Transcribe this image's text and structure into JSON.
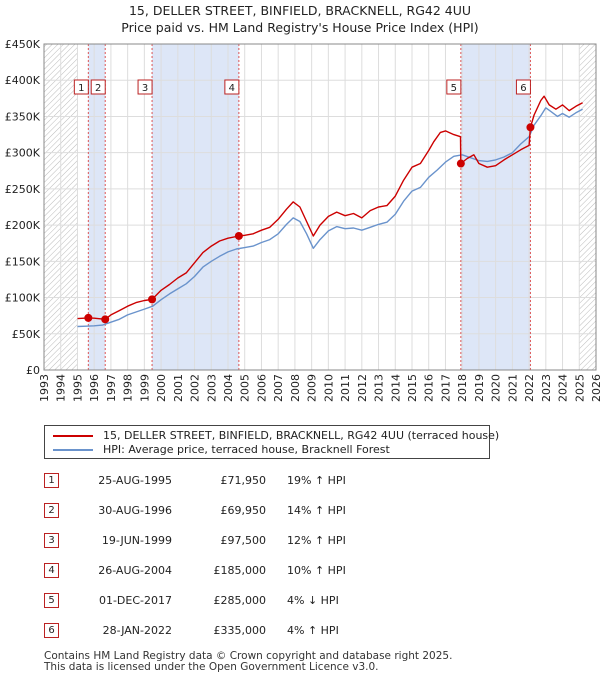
{
  "title": {
    "line1": "15, DELLER STREET, BINFIELD, BRACKNELL, RG42 4UU",
    "line2": "Price paid vs. HM Land Registry's House Price Index (HPI)"
  },
  "colors": {
    "price_line": "#cc0000",
    "hpi_line": "#6a93cc",
    "shade": "#dde6f7",
    "marker": "#cc0000",
    "marker_border": "#bb2222"
  },
  "legend": {
    "price_label": "15, DELLER STREET, BINFIELD, BRACKNELL, RG42 4UU (terraced house)",
    "hpi_label": "HPI: Average price, terraced house, Bracknell Forest"
  },
  "transactions": [
    {
      "num": "1",
      "date": "25-AUG-1995",
      "price": "£71,950",
      "hpi": "19% ↑ HPI"
    },
    {
      "num": "2",
      "date": "30-AUG-1996",
      "price": "£69,950",
      "hpi": "14% ↑ HPI"
    },
    {
      "num": "3",
      "date": "19-JUN-1999",
      "price": "£97,500",
      "hpi": "12% ↑ HPI"
    },
    {
      "num": "4",
      "date": "26-AUG-2004",
      "price": "£185,000",
      "hpi": "10% ↑ HPI"
    },
    {
      "num": "5",
      "date": "01-DEC-2017",
      "price": "£285,000",
      "hpi": "4% ↓ HPI"
    },
    {
      "num": "6",
      "date": "28-JAN-2022",
      "price": "£335,000",
      "hpi": "4% ↑ HPI"
    }
  ],
  "footer": {
    "line1": "Contains HM Land Registry data © Crown copyright and database right 2025.",
    "line2": "This data is licensed under the Open Government Licence v3.0."
  },
  "chart_data": {
    "type": "line",
    "title": "15, DELLER STREET, BINFIELD, BRACKNELL, RG42 4UU — Price paid vs. HM Land Registry's House Price Index (HPI)",
    "xlabel": "",
    "ylabel": "",
    "xlim": [
      1993,
      2026
    ],
    "ylim": [
      0,
      450000
    ],
    "grid": true,
    "yticks": [
      {
        "value": 0,
        "label": "£0"
      },
      {
        "value": 50000,
        "label": "£50K"
      },
      {
        "value": 100000,
        "label": "£100K"
      },
      {
        "value": 150000,
        "label": "£150K"
      },
      {
        "value": 200000,
        "label": "£200K"
      },
      {
        "value": 250000,
        "label": "£250K"
      },
      {
        "value": 300000,
        "label": "£300K"
      },
      {
        "value": 350000,
        "label": "£350K"
      },
      {
        "value": 400000,
        "label": "£400K"
      },
      {
        "value": 450000,
        "label": "£450K"
      }
    ],
    "xticks": [
      "1993",
      "1994",
      "1995",
      "1996",
      "1997",
      "1998",
      "1999",
      "2000",
      "2001",
      "2002",
      "2003",
      "2004",
      "2005",
      "2006",
      "2007",
      "2008",
      "2009",
      "2010",
      "2011",
      "2012",
      "2013",
      "2014",
      "2015",
      "2016",
      "2017",
      "2018",
      "2019",
      "2020",
      "2021",
      "2022",
      "2023",
      "2024",
      "2025",
      "2026"
    ],
    "shaded_periods": [
      [
        1995.65,
        1996.66
      ],
      [
        1999.46,
        2004.65
      ],
      [
        2017.92,
        2022.08
      ]
    ],
    "hatched_periods": [
      [
        1993,
        1995
      ],
      [
        2025.0,
        2026
      ]
    ],
    "sales": [
      {
        "label": "1",
        "x": 1995.65,
        "y": 71950
      },
      {
        "label": "2",
        "x": 1996.66,
        "y": 69950
      },
      {
        "label": "3",
        "x": 1999.46,
        "y": 97500
      },
      {
        "label": "4",
        "x": 2004.65,
        "y": 185000
      },
      {
        "label": "5",
        "x": 2017.92,
        "y": 285000
      },
      {
        "label": "6",
        "x": 2022.08,
        "y": 335000
      }
    ],
    "series": [
      {
        "name": "15, DELLER STREET, BINFIELD, BRACKNELL, RG42 4UU (terraced house)",
        "x": [
          1995.0,
          1995.65,
          1996.0,
          1996.66,
          1997.0,
          1997.5,
          1998.0,
          1998.5,
          1999.0,
          1999.46,
          2000.0,
          2000.5,
          2001.0,
          2001.5,
          2002.0,
          2002.5,
          2003.0,
          2003.5,
          2004.0,
          2004.65,
          2005.0,
          2005.5,
          2006.0,
          2006.5,
          2007.0,
          2007.5,
          2007.9,
          2008.3,
          2008.7,
          2009.1,
          2009.5,
          2010.0,
          2010.5,
          2011.0,
          2011.5,
          2012.0,
          2012.5,
          2013.0,
          2013.5,
          2014.0,
          2014.5,
          2015.0,
          2015.5,
          2016.0,
          2016.3,
          2016.7,
          2017.0,
          2017.5,
          2017.9,
          2017.92,
          2018.3,
          2018.7,
          2019.0,
          2019.5,
          2020.0,
          2020.5,
          2021.0,
          2021.5,
          2022.0,
          2022.08,
          2022.3,
          2022.7,
          2022.9,
          2023.2,
          2023.6,
          2024.0,
          2024.4,
          2024.8,
          2025.2
        ],
        "y": [
          71000,
          71950,
          71500,
          69950,
          76000,
          82000,
          88000,
          93000,
          96000,
          97500,
          110000,
          118000,
          127000,
          134000,
          148000,
          162000,
          171000,
          178000,
          182000,
          185000,
          186000,
          188000,
          193000,
          197000,
          208000,
          222000,
          232000,
          225000,
          205000,
          185000,
          200000,
          212000,
          218000,
          213000,
          216000,
          210000,
          220000,
          225000,
          227000,
          240000,
          262000,
          280000,
          285000,
          303000,
          315000,
          328000,
          330000,
          325000,
          322000,
          285000,
          292000,
          297000,
          285000,
          280000,
          282000,
          290000,
          297000,
          304000,
          310000,
          335000,
          352000,
          372000,
          378000,
          366000,
          360000,
          366000,
          358000,
          364000,
          369000
        ]
      },
      {
        "name": "HPI: Average price, terraced house, Bracknell Forest",
        "x": [
          1995.0,
          1995.5,
          1996.0,
          1996.5,
          1997.0,
          1997.5,
          1998.0,
          1998.5,
          1999.0,
          1999.5,
          2000.0,
          2000.5,
          2001.0,
          2001.5,
          2002.0,
          2002.5,
          2003.0,
          2003.5,
          2004.0,
          2004.5,
          2005.0,
          2005.5,
          2006.0,
          2006.5,
          2007.0,
          2007.5,
          2007.9,
          2008.3,
          2008.7,
          2009.1,
          2009.5,
          2010.0,
          2010.5,
          2011.0,
          2011.5,
          2012.0,
          2012.5,
          2013.0,
          2013.5,
          2014.0,
          2014.5,
          2015.0,
          2015.5,
          2016.0,
          2016.5,
          2017.0,
          2017.5,
          2018.0,
          2018.5,
          2019.0,
          2019.5,
          2020.0,
          2020.5,
          2021.0,
          2021.5,
          2022.0,
          2022.3,
          2022.7,
          2023.0,
          2023.3,
          2023.7,
          2024.0,
          2024.4,
          2024.8,
          2025.2
        ],
        "y": [
          60000,
          60500,
          61000,
          62000,
          66000,
          70000,
          76000,
          80000,
          84000,
          88000,
          97000,
          105000,
          112000,
          119000,
          129000,
          142000,
          150000,
          157000,
          163000,
          167000,
          169000,
          171000,
          176000,
          180000,
          188000,
          201000,
          210000,
          205000,
          188000,
          168000,
          180000,
          192000,
          198000,
          195000,
          196000,
          193000,
          197000,
          201000,
          204000,
          215000,
          233000,
          247000,
          252000,
          266000,
          276000,
          287000,
          295000,
          297000,
          293000,
          289000,
          288000,
          290000,
          294000,
          300000,
          312000,
          322000,
          338000,
          351000,
          362000,
          357000,
          350000,
          354000,
          349000,
          355000,
          360000
        ]
      }
    ]
  }
}
